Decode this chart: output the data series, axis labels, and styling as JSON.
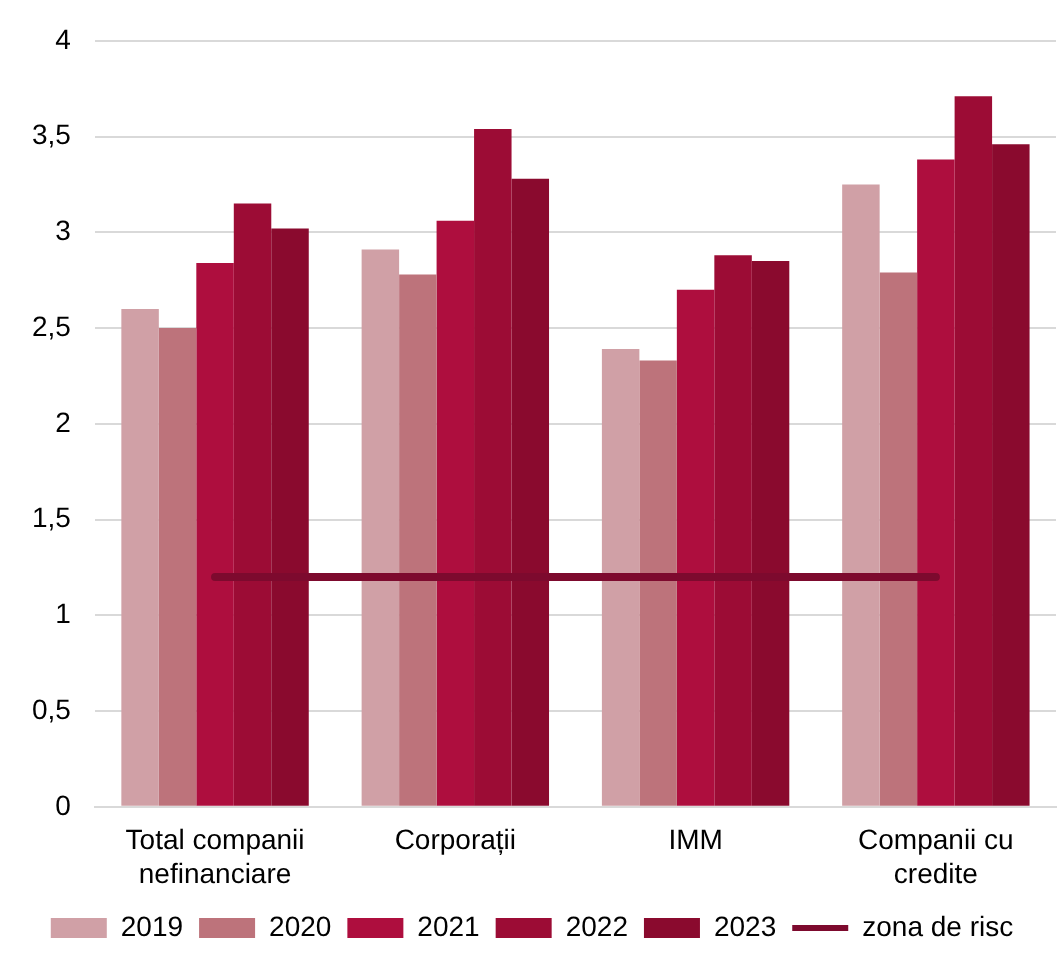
{
  "chart_data": {
    "type": "bar",
    "categories": [
      "Total companii nefinanciare",
      "Corporații",
      "IMM",
      "Companii cu credite"
    ],
    "series": [
      {
        "name": "2019",
        "color": "#d0a0a6",
        "values": [
          2.6,
          2.91,
          2.39,
          3.25
        ]
      },
      {
        "name": "2020",
        "color": "#bd737b",
        "values": [
          2.5,
          2.78,
          2.33,
          2.79
        ]
      },
      {
        "name": "2021",
        "color": "#ae0e3e",
        "values": [
          2.84,
          3.06,
          2.7,
          3.38
        ]
      },
      {
        "name": "2022",
        "color": "#9c0c35",
        "values": [
          3.15,
          3.54,
          2.88,
          3.71
        ]
      },
      {
        "name": "2023",
        "color": "#8a0a2e",
        "values": [
          3.02,
          3.28,
          2.85,
          3.46
        ]
      },
      {
        "name": "zona de risc",
        "type": "line",
        "color": "#7d0a2e",
        "values": [
          1.2,
          1.2,
          1.2,
          1.2
        ]
      }
    ],
    "ylim": [
      0,
      4
    ],
    "yticks": [
      0,
      {
        "value": 0.5,
        "label": "0,5"
      },
      1,
      {
        "value": 1.5,
        "label": "1,5"
      },
      2,
      {
        "value": 2.5,
        "label": "2,5"
      },
      3,
      {
        "value": 3.5,
        "label": "3,5"
      },
      4
    ],
    "grid": "y",
    "legend": "bottom",
    "marker": "none"
  }
}
